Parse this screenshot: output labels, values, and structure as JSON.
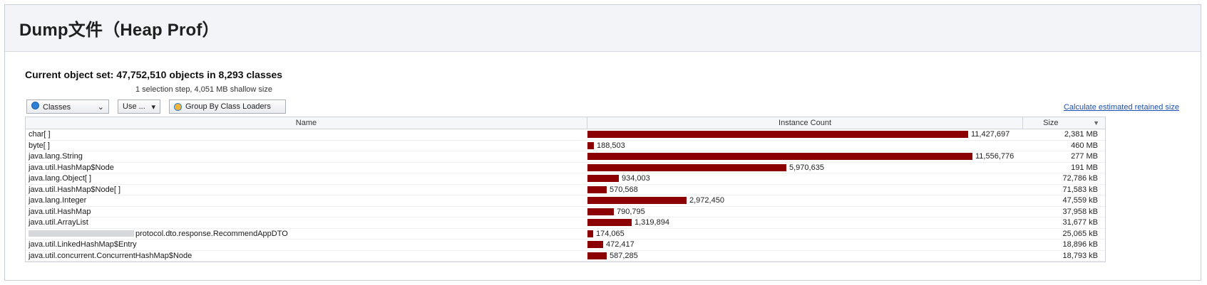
{
  "header": {
    "title": "Dump文件（Heap Prof）"
  },
  "summary": {
    "label": "Current object set:",
    "value": "47,752,510 objects in 8,293 classes",
    "sub": "1 selection step, 4,051 MB shallow size"
  },
  "toolbar": {
    "classes_label": "Classes",
    "use_label": "Use ...",
    "group_label": "Group By Class Loaders",
    "calc_link": "Calculate estimated retained size"
  },
  "table": {
    "headers": {
      "name": "Name",
      "count": "Instance Count",
      "size": "Size"
    },
    "max_count": 11556776,
    "rows": [
      {
        "name": "char[ ]",
        "count": 11427697,
        "count_label": "11,427,697",
        "size": "2,381 MB"
      },
      {
        "name": "byte[ ]",
        "count": 188503,
        "count_label": "188,503",
        "size": "460 MB"
      },
      {
        "name": "java.lang.String",
        "count": 11556776,
        "count_label": "11,556,776",
        "size": "277 MB"
      },
      {
        "name": "java.util.HashMap$Node",
        "count": 5970635,
        "count_label": "5,970,635",
        "size": "191 MB"
      },
      {
        "name": "java.lang.Object[ ]",
        "count": 934003,
        "count_label": "934,003",
        "size": "72,786 kB"
      },
      {
        "name": "java.util.HashMap$Node[ ]",
        "count": 570568,
        "count_label": "570,568",
        "size": "71,583 kB"
      },
      {
        "name": "java.lang.Integer",
        "count": 2972450,
        "count_label": "2,972,450",
        "size": "47,559 kB"
      },
      {
        "name": "java.util.HashMap",
        "count": 790795,
        "count_label": "790,795",
        "size": "37,958 kB"
      },
      {
        "name": "java.util.ArrayList",
        "count": 1319894,
        "count_label": "1,319,894",
        "size": "31,677 kB"
      },
      {
        "name": "protocol.dto.response.RecommendAppDTO",
        "count": 174065,
        "count_label": "174,065",
        "size": "25,065 kB",
        "redacted_prefix": true
      },
      {
        "name": "java.util.LinkedHashMap$Entry",
        "count": 472417,
        "count_label": "472,417",
        "size": "18,896 kB"
      },
      {
        "name": "java.util.concurrent.ConcurrentHashMap$Node",
        "count": 587285,
        "count_label": "587,285",
        "size": "18,793 kB"
      }
    ]
  },
  "colors": {
    "bar": "#8b0000",
    "link": "#1b4fb0",
    "header_bg": "#f2f4f7"
  },
  "icons": {
    "classes": "radio-icon",
    "dropdown": "chevron-down-icon",
    "group": "class-loader-icon",
    "sort": "sort-descending-icon"
  }
}
